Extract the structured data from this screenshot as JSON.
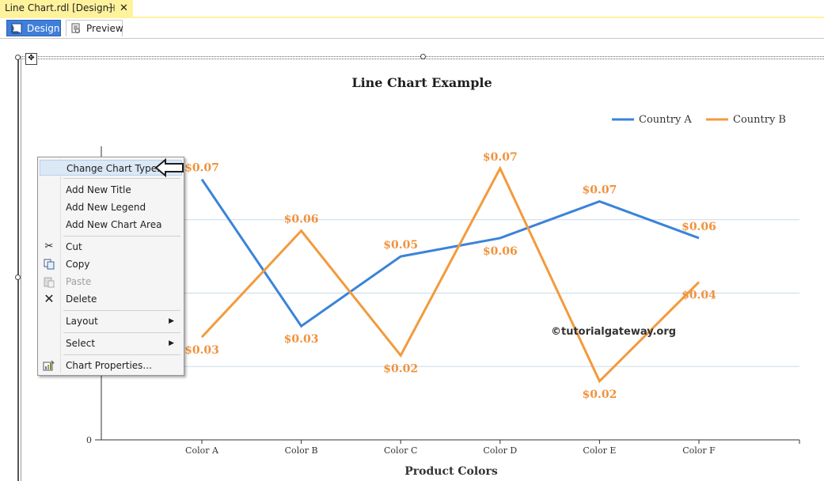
{
  "window": {
    "doc_tab_title": "Line Chart.rdl [Design]",
    "pin_glyph": "⊣",
    "close_glyph": "✕"
  },
  "view_tabs": [
    {
      "label": "Design",
      "icon": "design-ruler-icon",
      "active": true
    },
    {
      "label": "Preview",
      "icon": "preview-page-icon",
      "active": false
    }
  ],
  "colors": {
    "series_a": "#3b83d9",
    "series_b": "#f39a3c",
    "label_color": "#f0923d",
    "gridline": "#c9dbe8"
  },
  "chart_data": {
    "type": "line",
    "title": "Line Chart Example",
    "xlabel": "Product Colors",
    "ylabel": "",
    "categories": [
      "Color A",
      "Color B",
      "Color C",
      "Color D",
      "Color E",
      "Color F"
    ],
    "series": [
      {
        "name": "Country A",
        "values": [
          0.071,
          0.031,
          0.05,
          0.055,
          0.065,
          0.055
        ],
        "data_labels": [
          "$0.07",
          "$0.03",
          "$0.05",
          "$0.06",
          "$0.07",
          "$0.06"
        ]
      },
      {
        "name": "Country B",
        "values": [
          0.028,
          0.057,
          0.023,
          0.074,
          0.016,
          0.043
        ],
        "data_labels": [
          "$0.03",
          "$0.06",
          "$0.02",
          "$0.07",
          "$0.02",
          "$0.04"
        ]
      }
    ],
    "ylim": [
      0,
      0.08
    ],
    "y_ticks": [
      "0"
    ],
    "grid": true,
    "legend_position": "top-right",
    "watermark": "©tutorialgateway.org"
  },
  "context_menu": {
    "items": [
      {
        "label": "Change Chart Type...",
        "icon": "",
        "highlighted": true
      },
      {
        "label": "Add New Title",
        "icon": ""
      },
      {
        "label": "Add New Legend",
        "icon": ""
      },
      {
        "label": "Add New Chart Area",
        "icon": ""
      },
      {
        "label": "Cut",
        "icon": "scissors-icon"
      },
      {
        "label": "Copy",
        "icon": "copy-icon"
      },
      {
        "label": "Paste",
        "icon": "paste-icon",
        "disabled": true
      },
      {
        "label": "Delete",
        "icon": "delete-x-icon"
      },
      {
        "label": "Layout",
        "icon": "",
        "submenu": true
      },
      {
        "label": "Select",
        "icon": "",
        "submenu": true
      },
      {
        "label": "Chart Properties...",
        "icon": "chart-properties-icon"
      }
    ]
  }
}
